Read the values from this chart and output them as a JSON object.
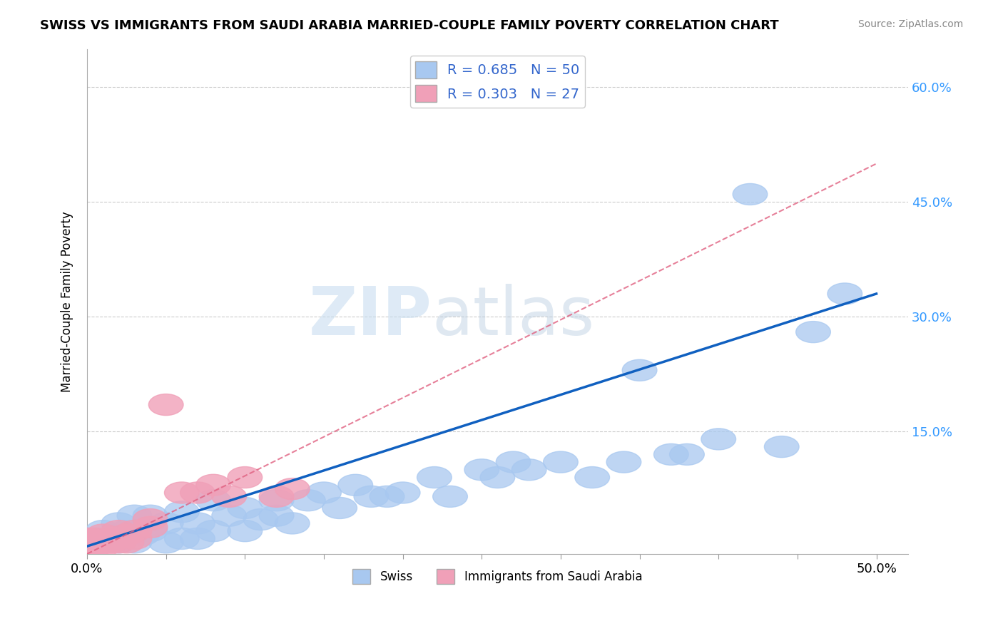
{
  "title": "SWISS VS IMMIGRANTS FROM SAUDI ARABIA MARRIED-COUPLE FAMILY POVERTY CORRELATION CHART",
  "source": "Source: ZipAtlas.com",
  "ylabel": "Married-Couple Family Poverty",
  "xlim": [
    0.0,
    0.52
  ],
  "ylim": [
    -0.01,
    0.65
  ],
  "ytick_positions": [
    0.0,
    0.15,
    0.3,
    0.45,
    0.6
  ],
  "ytick_labels": [
    "",
    "15.0%",
    "30.0%",
    "45.0%",
    "60.0%"
  ],
  "xticks": [
    0.0,
    0.05,
    0.1,
    0.15,
    0.2,
    0.25,
    0.3,
    0.35,
    0.4,
    0.45,
    0.5
  ],
  "legend_blue_label": "R = 0.685   N = 50",
  "legend_pink_label": "R = 0.303   N = 27",
  "blue_color": "#A8C8F0",
  "pink_color": "#F0A0B8",
  "blue_line_color": "#1060C0",
  "pink_line_color": "#E06080",
  "watermark_color": "#D0E4F4",
  "blue_scatter_x": [
    0.005,
    0.01,
    0.015,
    0.02,
    0.02,
    0.025,
    0.03,
    0.03,
    0.035,
    0.04,
    0.04,
    0.05,
    0.05,
    0.06,
    0.06,
    0.07,
    0.07,
    0.08,
    0.08,
    0.09,
    0.1,
    0.1,
    0.11,
    0.12,
    0.12,
    0.13,
    0.14,
    0.15,
    0.16,
    0.17,
    0.18,
    0.19,
    0.2,
    0.22,
    0.23,
    0.25,
    0.26,
    0.27,
    0.28,
    0.3,
    0.32,
    0.34,
    0.35,
    0.37,
    0.38,
    0.4,
    0.42,
    0.44,
    0.46,
    0.48
  ],
  "blue_scatter_y": [
    0.01,
    0.02,
    0.01,
    0.03,
    0.005,
    0.02,
    0.005,
    0.04,
    0.015,
    0.02,
    0.04,
    0.005,
    0.03,
    0.01,
    0.045,
    0.01,
    0.03,
    0.02,
    0.06,
    0.04,
    0.02,
    0.05,
    0.035,
    0.04,
    0.06,
    0.03,
    0.06,
    0.07,
    0.05,
    0.08,
    0.065,
    0.065,
    0.07,
    0.09,
    0.065,
    0.1,
    0.09,
    0.11,
    0.1,
    0.11,
    0.09,
    0.11,
    0.23,
    0.12,
    0.12,
    0.14,
    0.46,
    0.13,
    0.28,
    0.33
  ],
  "pink_scatter_x": [
    0.0,
    0.0,
    0.0,
    0.005,
    0.005,
    0.005,
    0.01,
    0.01,
    0.01,
    0.015,
    0.015,
    0.02,
    0.02,
    0.025,
    0.025,
    0.03,
    0.03,
    0.04,
    0.04,
    0.05,
    0.06,
    0.07,
    0.08,
    0.09,
    0.1,
    0.12,
    0.13
  ],
  "pink_scatter_y": [
    0.0,
    0.005,
    0.01,
    0.0,
    0.005,
    0.01,
    0.0,
    0.005,
    0.015,
    0.005,
    0.01,
    0.005,
    0.02,
    0.005,
    0.015,
    0.01,
    0.02,
    0.025,
    0.035,
    0.185,
    0.07,
    0.07,
    0.08,
    0.065,
    0.09,
    0.065,
    0.075
  ],
  "blue_regline": [
    0.0,
    0.0,
    0.5,
    0.33
  ],
  "pink_regline": [
    0.0,
    -0.01,
    0.5,
    0.5
  ],
  "background_color": "#FFFFFF",
  "grid_color": "#CCCCCC"
}
